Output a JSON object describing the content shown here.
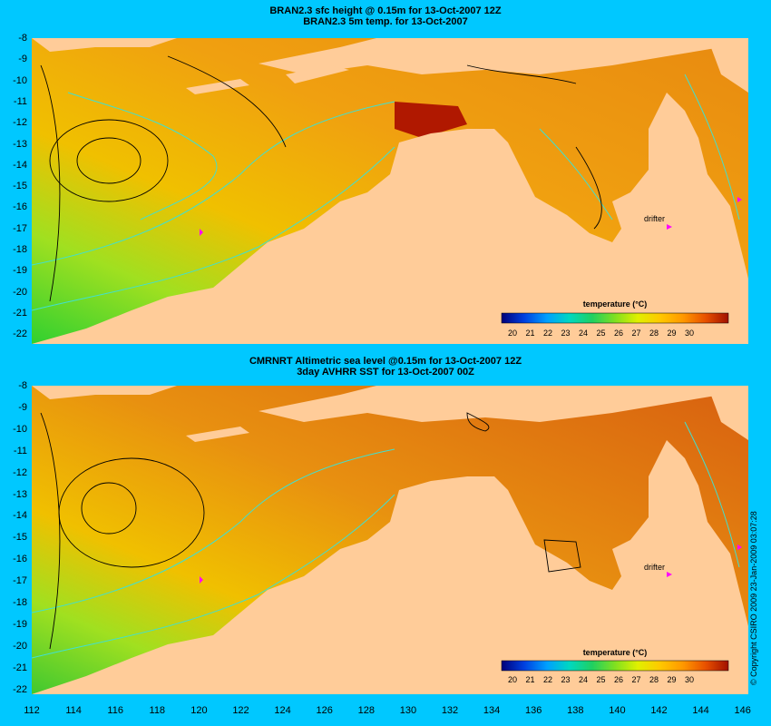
{
  "titles": {
    "top_line1": "BRAN2.3 sfc height @ 0.15m for 13-Oct-2007 12Z",
    "top_line2": "BRAN2.3 5m temp. for 13-Oct-2007",
    "bottom_line1": "CMRNRT Altimetric sea level  @0.15m  for 13-Oct-2007 12Z",
    "bottom_line2": "3day AVHRR SST for 13-Oct-2007 00Z"
  },
  "latitudes": [
    "-8",
    "-9",
    "-10",
    "-11",
    "-12",
    "-13",
    "-14",
    "-15",
    "-16",
    "-17",
    "-18",
    "-19",
    "-20",
    "-21",
    "-22"
  ],
  "longitudes": [
    "112",
    "114",
    "116",
    "118",
    "120",
    "122",
    "124",
    "126",
    "128",
    "130",
    "132",
    "134",
    "136",
    "138",
    "140",
    "142",
    "144",
    "146"
  ],
  "colorbar": {
    "title": "temperature (°C)",
    "ticks": [
      "20",
      "21",
      "22",
      "23",
      "24",
      "25",
      "26",
      "27",
      "28",
      "29",
      "30"
    ],
    "colors": [
      "#00007a",
      "#0030c8",
      "#0078ff",
      "#00b4ff",
      "#00dcc8",
      "#20d060",
      "#70e030",
      "#c8f000",
      "#ffd200",
      "#ffa000",
      "#ff7000",
      "#e04000",
      "#a01000"
    ]
  },
  "drifter_label": "drifter",
  "copyright": "© Copyright CSIRO 2009   23-Jan-2009 03:07:28",
  "colors": {
    "background": "#00c8ff",
    "land": "#ffcc99",
    "warm_sea": "#f5a623",
    "cool_sea": "#8ee040",
    "contour": "#40e0d0",
    "drifter": "#ff00ff"
  }
}
